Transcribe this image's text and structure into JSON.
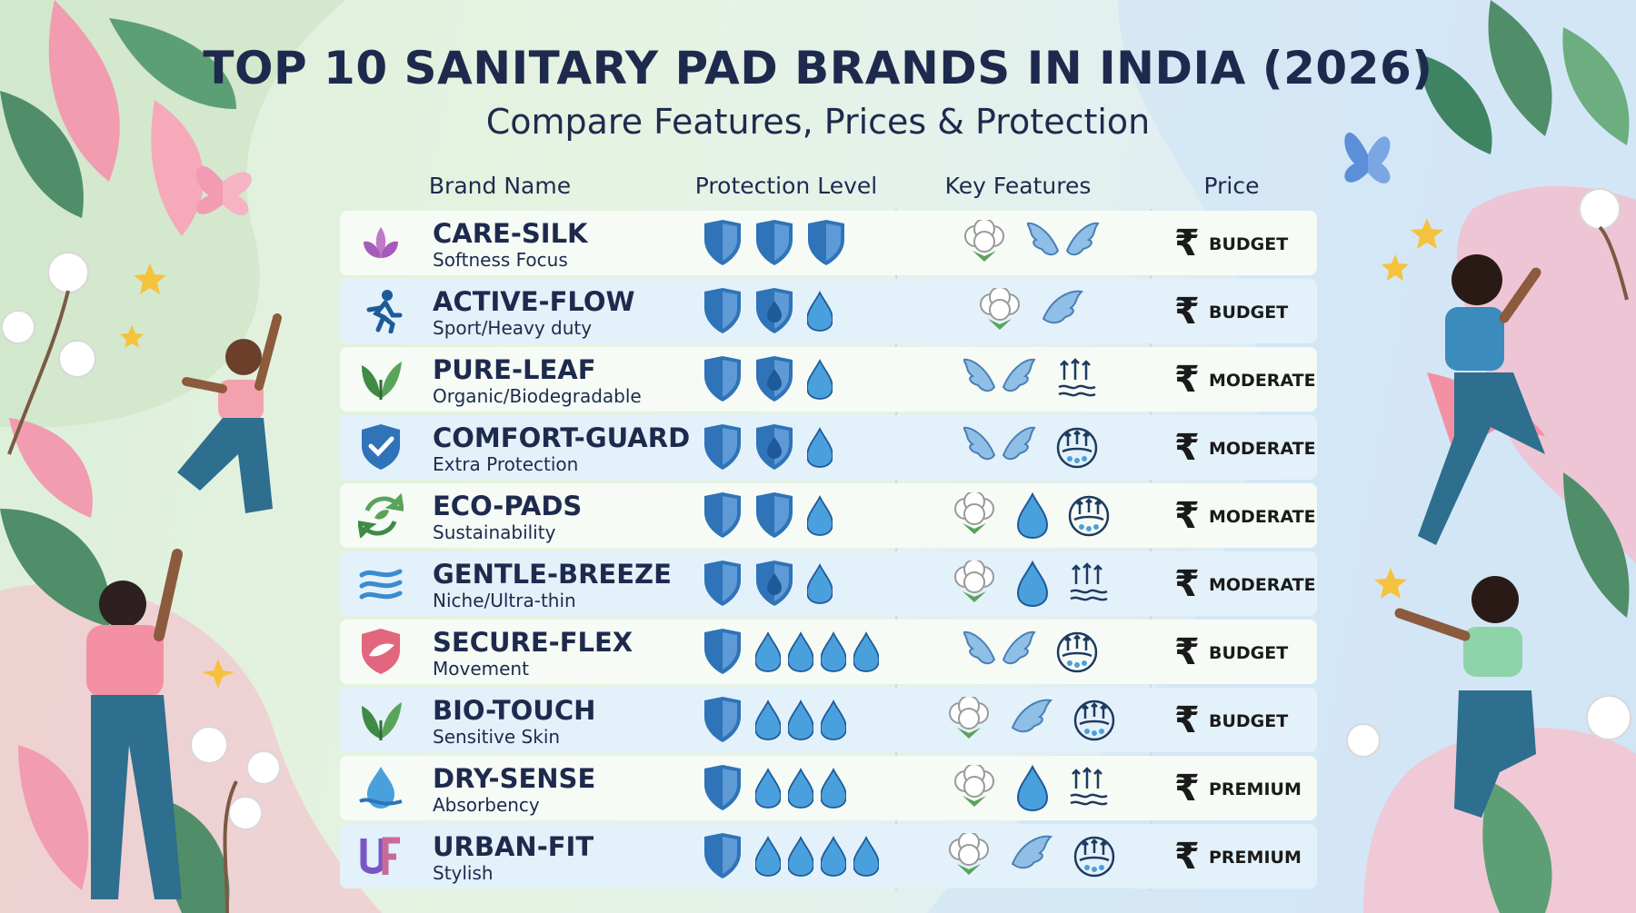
{
  "title": "TOP 10 SANITARY PAD BRANDS IN INDIA (2026)",
  "subtitle": "Compare Features, Prices & Protection",
  "headers": {
    "brand": "Brand Name",
    "protection": "Protection Level",
    "features": "Key Features",
    "price": "Price"
  },
  "rupee_symbol": "₹",
  "colors": {
    "title": "#1e2a4d",
    "shield": "#2f73b8",
    "drop": "#4aa0dc",
    "wing": "#8fbfe6",
    "leaf": "#5aa35a"
  },
  "rows": [
    {
      "name": "CARE-SILK",
      "sub": "Softness Focus",
      "icon": "lotus-icon",
      "protection": [
        "shield",
        "shield",
        "shield"
      ],
      "features": [
        "cotton",
        "wings"
      ],
      "price": "BUDGET"
    },
    {
      "name": "ACTIVE-FLOW",
      "sub": "Sport/Heavy duty",
      "icon": "runner-icon",
      "protection": [
        "shield",
        "shield-drop",
        "drop"
      ],
      "features": [
        "cotton",
        "wing"
      ],
      "price": "BUDGET"
    },
    {
      "name": "PURE-LEAF",
      "sub": "Organic/Biodegradable",
      "icon": "leaf-icon",
      "protection": [
        "shield",
        "shield-drop",
        "drop"
      ],
      "features": [
        "wings",
        "breathable"
      ],
      "price": "MODERATE"
    },
    {
      "name": "COMFORT-GUARD",
      "sub": "Extra Protection",
      "icon": "shield-check-icon",
      "protection": [
        "shield",
        "shield-drop",
        "drop"
      ],
      "features": [
        "wings",
        "airflow"
      ],
      "price": "MODERATE"
    },
    {
      "name": "ECO-PADS",
      "sub": "Sustainability",
      "icon": "recycle-leaf-icon",
      "protection": [
        "shield",
        "shield",
        "drop"
      ],
      "features": [
        "cotton",
        "drop",
        "airflow"
      ],
      "price": "MODERATE"
    },
    {
      "name": "GENTLE-BREEZE",
      "sub": "Niche/Ultra-thin",
      "icon": "wind-icon",
      "protection": [
        "shield",
        "shield-drop",
        "drop"
      ],
      "features": [
        "cotton",
        "drop",
        "breathable"
      ],
      "price": "MODERATE"
    },
    {
      "name": "SECURE-FLEX",
      "sub": "Movement",
      "icon": "flex-shield-icon",
      "protection": [
        "shield",
        "drop",
        "drop",
        "drop",
        "drop"
      ],
      "features": [
        "wings",
        "airflow"
      ],
      "price": "BUDGET"
    },
    {
      "name": "BIO-TOUCH",
      "sub": "Sensitive Skin",
      "icon": "leaf-icon",
      "protection": [
        "shield",
        "drop",
        "drop",
        "drop"
      ],
      "features": [
        "cotton",
        "wing",
        "airflow"
      ],
      "price": "BUDGET"
    },
    {
      "name": "DRY-SENSE",
      "sub": "Absorbency",
      "icon": "water-drop-icon",
      "protection": [
        "shield",
        "drop",
        "drop",
        "drop"
      ],
      "features": [
        "cotton",
        "drop",
        "breathable"
      ],
      "price": "PREMIUM"
    },
    {
      "name": "URBAN-FIT",
      "sub": "Stylish",
      "icon": "uf-logo-icon",
      "protection": [
        "shield",
        "drop",
        "drop",
        "drop",
        "drop"
      ],
      "features": [
        "cotton",
        "wing",
        "airflow"
      ],
      "price": "PREMIUM"
    }
  ]
}
